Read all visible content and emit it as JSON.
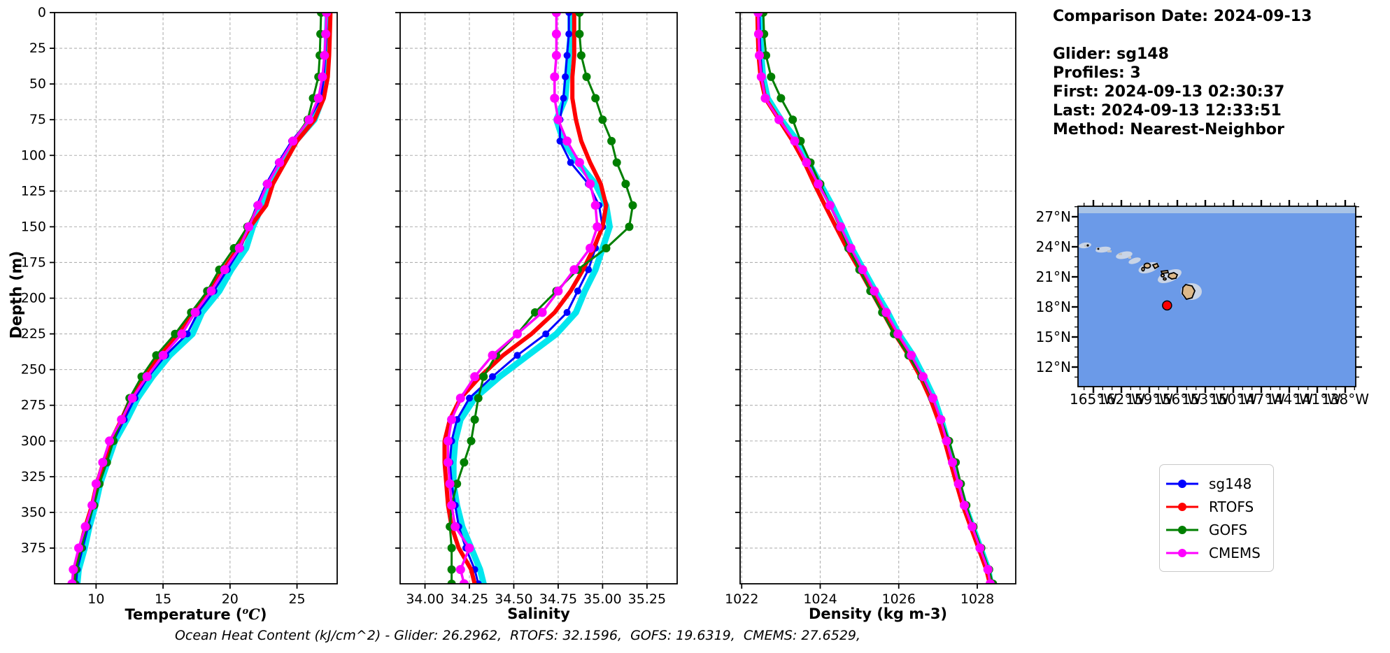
{
  "info_panel": {
    "lines": [
      "Comparison Date: 2024-09-13",
      "",
      "Glider: sg148",
      "Profiles: 3",
      "First: 2024-09-13 02:30:37",
      "Last: 2024-09-13 12:33:51",
      "Method: Nearest-Neighbor"
    ]
  },
  "footer": "Ocean Heat Content (kJ/cm^2) - Glider: 26.2962,  RTOFS: 32.1596,  GOFS: 19.6319,  CMEMS: 27.6529,",
  "legend": {
    "position": "outside lower right",
    "items": [
      {
        "label": "sg148",
        "color": "#0000ff"
      },
      {
        "label": "RTOFS",
        "color": "#ff0000"
      },
      {
        "label": "GOFS",
        "color": "#007f00"
      },
      {
        "label": "CMEMS",
        "color": "#ff00ff"
      }
    ]
  },
  "map": {
    "lat_values": [
      27,
      24,
      21,
      18,
      15,
      12
    ],
    "lat_labels": [
      "27°N",
      "24°N",
      "21°N",
      "18°N",
      "15°N",
      "12°N"
    ],
    "lon_values": [
      165,
      162,
      159,
      156,
      153,
      150,
      147,
      144,
      141,
      138
    ],
    "lon_labels": [
      "165°W",
      "162°W",
      "159°W",
      "156°W",
      "153°W",
      "150°W",
      "147°W",
      "144°W",
      "141°W",
      "138°W"
    ],
    "marker": {
      "lon_w": 157.1,
      "lat_n": 18.15,
      "color": "#ff0000"
    },
    "colors": {
      "ocean": "#6b9ae8",
      "top_band": "#a9c4e6",
      "land": "#ddb98a",
      "shallow": "#c9d4e6",
      "speck": "#c2c2c2"
    }
  },
  "chart_data": [
    {
      "type": "line",
      "id": "temperature",
      "xlabel": {
        "pre": "Temperature (",
        "sup": "o",
        "mathc": "C",
        "post": ")"
      },
      "ylabel": "Depth (m)",
      "grid": true,
      "show_depth_labels": true,
      "xlim": [
        6.9,
        28.0
      ],
      "ylim": [
        0,
        400
      ],
      "xticks": [
        10,
        15,
        20,
        25
      ],
      "xtick_labels": [
        "10",
        "15",
        "20",
        "25"
      ],
      "yticks": [
        0,
        25,
        50,
        75,
        100,
        125,
        150,
        175,
        200,
        225,
        250,
        275,
        300,
        325,
        350,
        375
      ],
      "ytick_labels": [
        "0",
        "25",
        "50",
        "75",
        "100",
        "125",
        "150",
        "175",
        "200",
        "225",
        "250",
        "275",
        "300",
        "325",
        "350",
        "375"
      ],
      "depths": [
        0,
        15,
        30,
        45,
        60,
        75,
        90,
        105,
        120,
        135,
        150,
        165,
        180,
        195,
        210,
        225,
        240,
        255,
        270,
        285,
        300,
        315,
        330,
        345,
        360,
        375,
        390,
        400
      ],
      "series": [
        {
          "id": "sg148-raw",
          "name": "sg148 raw profiles",
          "color": "#00e6ee",
          "values": [
            27.3,
            27.25,
            27.2,
            27.05,
            26.9,
            26.3,
            24.9,
            24.0,
            23.0,
            22.4,
            21.7,
            21.2,
            20.1,
            19.2,
            17.9,
            17.2,
            15.5,
            14.2,
            13.1,
            12.3,
            11.4,
            10.85,
            10.3,
            9.95,
            9.5,
            9.15,
            8.7,
            8.6
          ]
        },
        {
          "id": "sg148",
          "name": "sg148",
          "color": "#0000ff",
          "values": [
            27.2,
            27.2,
            27.1,
            27.0,
            26.8,
            25.9,
            24.6,
            23.6,
            22.7,
            22.0,
            21.4,
            20.8,
            19.8,
            18.8,
            17.6,
            16.8,
            15.2,
            13.9,
            12.9,
            12.1,
            11.3,
            10.7,
            10.2,
            9.8,
            9.4,
            9.0,
            8.6,
            8.5
          ]
        },
        {
          "id": "rtofs",
          "name": "RTOFS",
          "color": "#ff0000",
          "values": [
            27.5,
            27.45,
            27.4,
            27.3,
            27.0,
            26.3,
            25.0,
            24.1,
            23.2,
            22.7,
            21.5,
            20.6,
            19.5,
            18.5,
            17.2,
            16.2,
            14.8,
            13.6,
            12.6,
            11.9,
            11.1,
            10.55,
            10.05,
            9.7,
            9.2,
            8.8,
            8.4,
            8.3
          ]
        },
        {
          "id": "gofs",
          "name": "GOFS",
          "color": "#007f00",
          "values": [
            26.8,
            26.75,
            26.7,
            26.6,
            26.2,
            25.8,
            24.7,
            23.7,
            22.8,
            22.1,
            21.3,
            20.3,
            19.2,
            18.3,
            17.1,
            15.9,
            14.5,
            13.4,
            12.5,
            11.9,
            11.3,
            10.8,
            10.25,
            9.85,
            9.3,
            8.9,
            8.5,
            8.4
          ]
        },
        {
          "id": "cmems",
          "name": "CMEMS",
          "color": "#ff00ff",
          "values": [
            27.2,
            27.15,
            27.05,
            26.9,
            26.6,
            25.9,
            24.7,
            23.7,
            22.8,
            22.1,
            21.4,
            20.7,
            19.6,
            18.6,
            17.4,
            16.4,
            15.0,
            13.8,
            12.7,
            11.9,
            11.0,
            10.5,
            10.0,
            9.7,
            9.2,
            8.7,
            8.3,
            8.2
          ]
        }
      ]
    },
    {
      "type": "line",
      "id": "salinity",
      "xlabel": {
        "pre": "Salinity",
        "sup": "",
        "mathc": "",
        "post": ""
      },
      "ylabel": "",
      "grid": true,
      "show_depth_labels": false,
      "xlim": [
        33.86,
        35.42
      ],
      "ylim": [
        0,
        400
      ],
      "xticks": [
        34.0,
        34.25,
        34.5,
        34.75,
        35.0,
        35.25
      ],
      "xtick_labels": [
        "34.00",
        "34.25",
        "34.50",
        "34.75",
        "35.00",
        "35.25"
      ],
      "yticks": [
        0,
        25,
        50,
        75,
        100,
        125,
        150,
        175,
        200,
        225,
        250,
        275,
        300,
        325,
        350,
        375
      ],
      "ytick_labels": [
        "0",
        "25",
        "50",
        "75",
        "100",
        "125",
        "150",
        "175",
        "200",
        "225",
        "250",
        "275",
        "300",
        "325",
        "350",
        "375"
      ],
      "depths": [
        0,
        15,
        30,
        45,
        60,
        75,
        90,
        105,
        120,
        135,
        150,
        165,
        180,
        195,
        210,
        225,
        240,
        255,
        270,
        285,
        300,
        315,
        330,
        345,
        360,
        375,
        390,
        400
      ],
      "series": [
        {
          "id": "sg148-raw",
          "name": "sg148 raw profiles",
          "color": "#00e6ee",
          "values": [
            34.82,
            34.82,
            34.81,
            34.8,
            34.79,
            34.74,
            34.78,
            34.86,
            34.96,
            35.02,
            35.04,
            35.0,
            34.96,
            34.9,
            34.85,
            34.74,
            34.58,
            34.42,
            34.28,
            34.2,
            34.17,
            34.16,
            34.16,
            34.18,
            34.21,
            34.26,
            34.31,
            34.33
          ]
        },
        {
          "id": "sg148",
          "name": "sg148",
          "color": "#0000ff",
          "values": [
            34.81,
            34.81,
            34.8,
            34.79,
            34.78,
            34.76,
            34.76,
            34.82,
            34.92,
            34.98,
            35.0,
            34.96,
            34.92,
            34.86,
            34.8,
            34.68,
            34.52,
            34.38,
            34.25,
            34.18,
            34.15,
            34.14,
            34.15,
            34.17,
            34.19,
            34.23,
            34.28,
            34.3
          ]
        },
        {
          "id": "rtofs",
          "name": "RTOFS",
          "color": "#ff0000",
          "values": [
            34.84,
            34.84,
            34.84,
            34.83,
            34.83,
            34.85,
            34.88,
            34.93,
            34.99,
            35.02,
            35.0,
            34.95,
            34.89,
            34.82,
            34.73,
            34.6,
            34.44,
            34.31,
            34.2,
            34.14,
            34.11,
            34.11,
            34.12,
            34.13,
            34.15,
            34.19,
            34.26,
            34.28
          ]
        },
        {
          "id": "gofs",
          "name": "GOFS",
          "color": "#007f00",
          "values": [
            34.87,
            34.87,
            34.88,
            34.91,
            34.96,
            35.0,
            35.05,
            35.08,
            35.13,
            35.17,
            35.15,
            35.02,
            34.86,
            34.74,
            34.62,
            34.52,
            34.4,
            34.33,
            34.3,
            34.28,
            34.26,
            34.22,
            34.18,
            34.15,
            34.14,
            34.15,
            34.15,
            34.15
          ]
        },
        {
          "id": "cmems",
          "name": "CMEMS",
          "color": "#ff00ff",
          "values": [
            34.74,
            34.74,
            34.74,
            34.73,
            34.73,
            34.75,
            34.8,
            34.87,
            34.93,
            34.96,
            34.97,
            34.93,
            34.84,
            34.75,
            34.66,
            34.52,
            34.38,
            34.28,
            34.2,
            34.15,
            34.13,
            34.13,
            34.14,
            34.15,
            34.17,
            34.25,
            34.2,
            34.22
          ]
        }
      ]
    },
    {
      "type": "line",
      "id": "density",
      "xlabel": {
        "pre": "Density (kg m-3)",
        "sup": "",
        "mathc": "",
        "post": ""
      },
      "ylabel": "",
      "grid": true,
      "show_depth_labels": false,
      "xlim": [
        1021.96,
        1028.98
      ],
      "ylim": [
        0,
        400
      ],
      "xticks": [
        1022,
        1024,
        1026,
        1028
      ],
      "xtick_labels": [
        "1022",
        "1024",
        "1026",
        "1028"
      ],
      "yticks": [
        0,
        25,
        50,
        75,
        100,
        125,
        150,
        175,
        200,
        225,
        250,
        275,
        300,
        325,
        350,
        375
      ],
      "ytick_labels": [
        "0",
        "25",
        "50",
        "75",
        "100",
        "125",
        "150",
        "175",
        "200",
        "225",
        "250",
        "275",
        "300",
        "325",
        "350",
        "375"
      ],
      "depths": [
        0,
        15,
        30,
        45,
        60,
        75,
        90,
        105,
        120,
        135,
        150,
        165,
        180,
        195,
        210,
        225,
        240,
        255,
        270,
        285,
        300,
        315,
        330,
        345,
        360,
        375,
        390,
        400
      ],
      "series": [
        {
          "id": "sg148-raw",
          "name": "sg148 raw profiles",
          "color": "#00e6ee",
          "values": [
            1022.47,
            1022.47,
            1022.5,
            1022.54,
            1022.66,
            1023.0,
            1023.42,
            1023.7,
            1024.0,
            1024.3,
            1024.56,
            1024.8,
            1025.1,
            1025.4,
            1025.72,
            1026.0,
            1026.36,
            1026.64,
            1026.9,
            1027.08,
            1027.24,
            1027.38,
            1027.52,
            1027.68,
            1027.88,
            1028.08,
            1028.28,
            1028.34
          ]
        },
        {
          "id": "sg148",
          "name": "sg148",
          "color": "#0000ff",
          "values": [
            1022.45,
            1022.46,
            1022.48,
            1022.52,
            1022.62,
            1022.95,
            1023.35,
            1023.65,
            1023.95,
            1024.25,
            1024.5,
            1024.75,
            1025.05,
            1025.35,
            1025.65,
            1025.95,
            1026.3,
            1026.6,
            1026.85,
            1027.05,
            1027.2,
            1027.35,
            1027.5,
            1027.65,
            1027.85,
            1028.05,
            1028.25,
            1028.31
          ]
        },
        {
          "id": "rtofs",
          "name": "RTOFS",
          "color": "#ff0000",
          "values": [
            1022.4,
            1022.41,
            1022.43,
            1022.48,
            1022.6,
            1022.95,
            1023.3,
            1023.6,
            1023.85,
            1024.12,
            1024.4,
            1024.68,
            1025.0,
            1025.3,
            1025.6,
            1025.9,
            1026.25,
            1026.55,
            1026.8,
            1027.0,
            1027.17,
            1027.32,
            1027.47,
            1027.63,
            1027.83,
            1028.03,
            1028.23,
            1028.32
          ]
        },
        {
          "id": "gofs",
          "name": "GOFS",
          "color": "#007f00",
          "values": [
            1022.55,
            1022.57,
            1022.62,
            1022.75,
            1023.0,
            1023.3,
            1023.5,
            1023.75,
            1024.0,
            1024.25,
            1024.5,
            1024.72,
            1025.0,
            1025.28,
            1025.58,
            1025.88,
            1026.25,
            1026.58,
            1026.85,
            1027.08,
            1027.28,
            1027.45,
            1027.58,
            1027.72,
            1027.9,
            1028.1,
            1028.3,
            1028.4
          ]
        },
        {
          "id": "cmems",
          "name": "CMEMS",
          "color": "#ff00ff",
          "values": [
            1022.42,
            1022.43,
            1022.45,
            1022.5,
            1022.6,
            1022.95,
            1023.35,
            1023.65,
            1023.95,
            1024.25,
            1024.52,
            1024.78,
            1025.08,
            1025.38,
            1025.68,
            1025.98,
            1026.32,
            1026.62,
            1026.87,
            1027.07,
            1027.22,
            1027.37,
            1027.52,
            1027.67,
            1027.87,
            1028.07,
            1028.27,
            1028.33
          ]
        }
      ]
    }
  ]
}
